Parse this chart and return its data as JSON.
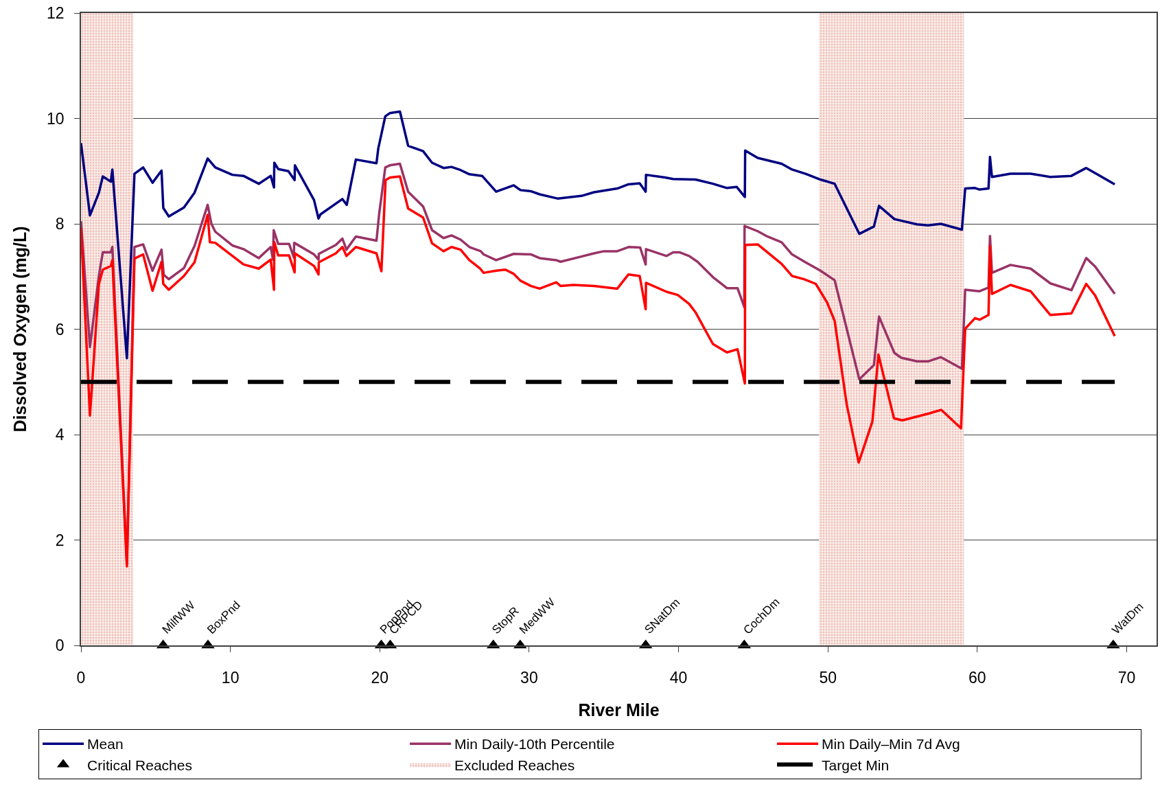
{
  "chart_data": {
    "type": "line",
    "xlabel": "River Mile",
    "ylabel": "Dissolved Oxygen (mg/L)",
    "xlim": [
      0,
      72
    ],
    "xticks": [
      0,
      10,
      20,
      30,
      40,
      50,
      60,
      70
    ],
    "ylim": [
      0,
      12
    ],
    "yticks": [
      0,
      2,
      4,
      6,
      8,
      10,
      12
    ],
    "grid": "y",
    "legend": "bottom",
    "marker": "none",
    "line_style": "solid",
    "series": [
      {
        "name": "Mean",
        "color": "#000080",
        "x": [
          0,
          0.6,
          1.2,
          1.46,
          2.0,
          2.1,
          3.07,
          3.58,
          4.16,
          4.79,
          5.39,
          5.51,
          5.88,
          6.89,
          7.6,
          8.48,
          8.99,
          10.13,
          10.88,
          11.9,
          12.7,
          12.92,
          12.94,
          13.2,
          13.88,
          14.3,
          14.32,
          15.6,
          15.9,
          16.03,
          17.5,
          17.79,
          18.4,
          19.78,
          19.9,
          20.37,
          20.67,
          21.35,
          21.9,
          22.9,
          23.5,
          24.27,
          24.8,
          25.41,
          26.0,
          26.85,
          27.79,
          28.97,
          29.42,
          30.1,
          30.7,
          31.9,
          33.5,
          34.34,
          35.9,
          36.65,
          37.4,
          37.8,
          37.82,
          39.1,
          39.64,
          41.14,
          42.3,
          43.24,
          43.9,
          44.44,
          44.46,
          45.3,
          46.9,
          47.6,
          48.5,
          49.5,
          50.45,
          52.1,
          53.08,
          53.42,
          54.45,
          55.96,
          56.7,
          57.56,
          58.97,
          59.19,
          59.85,
          60.15,
          60.75,
          60.85,
          60.98,
          62.22,
          63.57,
          64.89,
          66.3,
          67.29,
          69.2
        ],
        "values": [
          9.53,
          8.16,
          8.59,
          8.9,
          8.8,
          9.03,
          5.45,
          8.95,
          9.07,
          8.78,
          9.01,
          8.3,
          8.14,
          8.31,
          8.59,
          9.24,
          9.07,
          8.93,
          8.91,
          8.76,
          8.91,
          8.69,
          9.16,
          9.04,
          9.0,
          8.83,
          9.11,
          8.45,
          8.1,
          8.18,
          8.47,
          8.36,
          9.22,
          9.15,
          9.43,
          10.04,
          10.1,
          10.13,
          9.48,
          9.38,
          9.16,
          9.06,
          9.08,
          9.02,
          8.94,
          8.91,
          8.61,
          8.73,
          8.64,
          8.62,
          8.56,
          8.48,
          8.53,
          8.6,
          8.67,
          8.75,
          8.77,
          8.61,
          8.93,
          8.88,
          8.85,
          8.84,
          8.76,
          8.68,
          8.7,
          8.51,
          9.39,
          9.25,
          9.14,
          9.03,
          8.95,
          8.84,
          8.76,
          7.81,
          7.95,
          8.34,
          8.09,
          7.99,
          7.97,
          8.0,
          7.89,
          8.67,
          8.68,
          8.65,
          8.67,
          9.27,
          8.89,
          8.95,
          8.95,
          8.89,
          8.91,
          9.06,
          8.75
        ]
      },
      {
        "name": "Min Daily-10th Percentile",
        "color": "#993366",
        "x": [
          0,
          0.6,
          1.2,
          1.46,
          2.0,
          2.1,
          3.07,
          3.58,
          4.16,
          4.79,
          5.39,
          5.54,
          5.88,
          6.89,
          7.6,
          8.48,
          8.73,
          8.99,
          10.13,
          10.88,
          11.9,
          12.7,
          12.85,
          12.9,
          13.2,
          13.93,
          14.25,
          14.27,
          15.6,
          15.9,
          15.92,
          17.06,
          17.5,
          17.77,
          18.4,
          19.78,
          19.96,
          20.37,
          20.67,
          21.35,
          21.9,
          22.9,
          23.5,
          24.27,
          24.8,
          25.41,
          26.0,
          26.76,
          26.95,
          27.79,
          28.97,
          30.13,
          30.7,
          31.82,
          32.1,
          33.5,
          34.34,
          35.0,
          35.9,
          36.65,
          37.43,
          37.8,
          37.82,
          39.2,
          39.64,
          40.06,
          40.71,
          41.27,
          42.3,
          43.24,
          43.95,
          44.4,
          44.42,
          45.3,
          45.95,
          46.9,
          47.6,
          48.5,
          49.5,
          50.45,
          52.1,
          53.08,
          53.42,
          54.45,
          54.9,
          55.96,
          56.7,
          57.56,
          58.97,
          59.19,
          60.15,
          60.75,
          60.85,
          60.98,
          62.22,
          63.57,
          64.89,
          66.3,
          67.29,
          67.89,
          69.2
        ],
        "values": [
          8.05,
          5.66,
          7.02,
          7.46,
          7.46,
          7.56,
          1.55,
          7.56,
          7.61,
          7.11,
          7.51,
          7.03,
          6.95,
          7.16,
          7.58,
          8.36,
          8.0,
          7.85,
          7.59,
          7.52,
          7.35,
          7.56,
          7.32,
          7.88,
          7.62,
          7.62,
          7.36,
          7.64,
          7.42,
          7.32,
          7.43,
          7.6,
          7.72,
          7.51,
          7.76,
          7.68,
          8.19,
          9.07,
          9.11,
          9.14,
          8.61,
          8.33,
          7.88,
          7.73,
          7.78,
          7.7,
          7.56,
          7.48,
          7.42,
          7.31,
          7.43,
          7.42,
          7.35,
          7.31,
          7.28,
          7.38,
          7.44,
          7.48,
          7.48,
          7.56,
          7.55,
          7.23,
          7.52,
          7.39,
          7.46,
          7.46,
          7.39,
          7.28,
          6.99,
          6.78,
          6.78,
          6.42,
          7.96,
          7.86,
          7.76,
          7.65,
          7.42,
          7.27,
          7.11,
          6.93,
          5.05,
          5.32,
          6.24,
          5.55,
          5.46,
          5.39,
          5.39,
          5.47,
          5.25,
          6.75,
          6.72,
          6.79,
          7.77,
          7.07,
          7.22,
          7.15,
          6.87,
          6.74,
          7.35,
          7.19,
          6.67
        ]
      },
      {
        "name": "Min Daily–Min 7d Avg",
        "color": "#ff0000",
        "x": [
          0,
          0.6,
          1.2,
          1.46,
          2.0,
          2.1,
          3.07,
          3.58,
          4.16,
          4.79,
          5.39,
          5.51,
          5.88,
          6.89,
          7.6,
          8.48,
          8.63,
          8.99,
          10.88,
          11.9,
          12.7,
          12.92,
          12.94,
          13.2,
          13.93,
          14.3,
          14.32,
          15.6,
          15.9,
          15.92,
          17.06,
          17.5,
          17.77,
          18.4,
          19.78,
          20.11,
          20.39,
          20.7,
          21.35,
          21.9,
          22.9,
          23.5,
          24.27,
          24.8,
          25.41,
          26.0,
          26.72,
          26.95,
          27.79,
          28.41,
          28.97,
          29.42,
          30.13,
          30.7,
          31.82,
          32.1,
          32.95,
          34.34,
          35.9,
          36.65,
          37.4,
          37.8,
          37.82,
          39.2,
          39.95,
          40.71,
          41.14,
          42.3,
          43.24,
          43.95,
          44.44,
          44.46,
          45.3,
          46.9,
          47.6,
          48.4,
          49.19,
          49.94,
          50.45,
          51.26,
          52.06,
          52.98,
          53.38,
          54.42,
          54.98,
          56.76,
          57.59,
          58.91,
          59.19,
          59.85,
          60.15,
          60.75,
          60.85,
          60.98,
          62.22,
          63.57,
          64.89,
          66.3,
          67.29,
          67.89,
          69.2
        ],
        "values": [
          7.92,
          4.36,
          6.86,
          7.13,
          7.2,
          7.31,
          1.5,
          7.34,
          7.42,
          6.73,
          7.28,
          6.86,
          6.75,
          7.01,
          7.27,
          8.17,
          7.65,
          7.64,
          7.23,
          7.15,
          7.32,
          6.75,
          7.65,
          7.4,
          7.4,
          7.08,
          7.44,
          7.2,
          7.04,
          7.27,
          7.44,
          7.56,
          7.39,
          7.56,
          7.44,
          7.1,
          8.83,
          8.88,
          8.9,
          8.29,
          8.12,
          7.63,
          7.48,
          7.56,
          7.51,
          7.31,
          7.15,
          7.07,
          7.11,
          7.13,
          7.05,
          6.92,
          6.82,
          6.77,
          6.89,
          6.82,
          6.84,
          6.82,
          6.77,
          7.04,
          7.01,
          6.38,
          6.88,
          6.71,
          6.65,
          6.48,
          6.32,
          5.72,
          5.56,
          5.62,
          4.97,
          7.6,
          7.61,
          7.24,
          7.01,
          6.95,
          6.86,
          6.51,
          6.16,
          4.57,
          3.47,
          4.25,
          5.52,
          4.31,
          4.27,
          4.4,
          4.47,
          4.12,
          6.01,
          6.21,
          6.18,
          6.27,
          7.58,
          6.67,
          6.84,
          6.72,
          6.27,
          6.3,
          6.86,
          6.64,
          5.87
        ]
      },
      {
        "name": "Critical Reaches",
        "type": "scatter",
        "marker": "triangle",
        "color": "#000000",
        "x": [
          5.5,
          8.5,
          20.1,
          20.7,
          27.6,
          29.4,
          37.8,
          44.4,
          69.1
        ],
        "values": [
          0,
          0,
          0,
          0,
          0,
          0,
          0,
          0,
          0
        ]
      }
    ],
    "annotations": [
      {
        "text": "MilfWW",
        "x": 5.5,
        "y": 0
      },
      {
        "text": "BoxPnd",
        "x": 8.5,
        "y": 0
      },
      {
        "text": "PopPnd",
        "x": 20.1,
        "y": 0
      },
      {
        "text": "CRPCD",
        "x": 20.7,
        "y": 0
      },
      {
        "text": "StopR",
        "x": 27.6,
        "y": 0
      },
      {
        "text": "MedWW",
        "x": 29.4,
        "y": 0
      },
      {
        "text": "SNatDm",
        "x": 37.8,
        "y": 0
      },
      {
        "text": "CochDm",
        "x": 44.4,
        "y": 0
      },
      {
        "text": "WatDm",
        "x": 69.1,
        "y": 0
      }
    ],
    "bands": [
      {
        "axis": "x",
        "from": 0,
        "to": 3.5,
        "label": "Excluded Reaches",
        "color": "#e09080"
      },
      {
        "axis": "x",
        "from": 49.4,
        "to": 59.1,
        "color": "#e09080"
      }
    ],
    "ref_lines": [
      {
        "axis": "y",
        "value": 5,
        "label": "Target Min",
        "color": "#000000",
        "line_style": "dashed"
      }
    ]
  }
}
